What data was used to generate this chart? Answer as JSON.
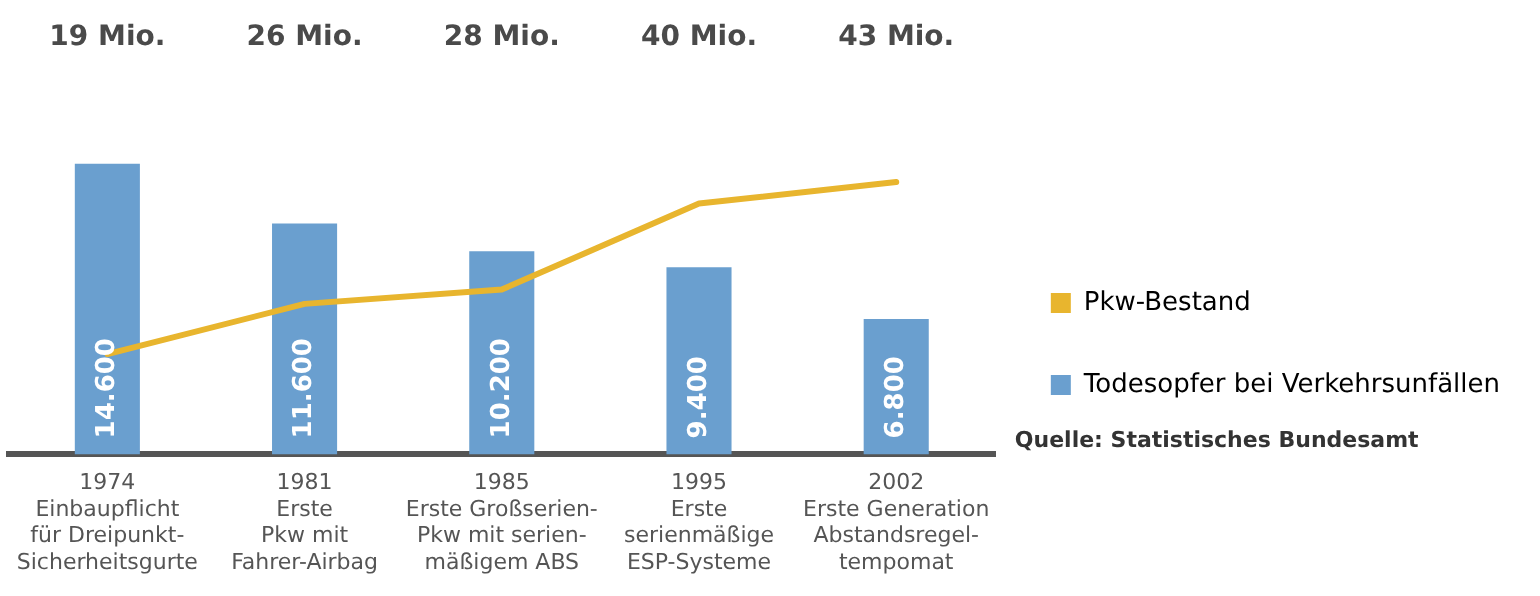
{
  "chart_data": {
    "type": "bar",
    "categories": [
      "1974\nEinbaupflicht\nfür Dreipunkt-\nSicherheitsgurte",
      "1981\nErste\nPkw mit\nFahrer-Airbag",
      "1985\nErste Großserien-\nPkw mit serien-\nmäßigem ABS",
      "1995\nErste\nserienmäßige\nESP-Systeme",
      "2002\nErste Generation\nAbstandsregel-\ntempomat"
    ],
    "series": [
      {
        "name": "Pkw-Bestand",
        "type": "line",
        "axis": "y2",
        "color": "#e8b52e",
        "values": [
          19,
          26,
          28,
          40,
          43
        ],
        "value_labels": [
          "19 Mio.",
          "26 Mio.",
          "28 Mio.",
          "40 Mio.",
          "43 Mio."
        ]
      },
      {
        "name": "Todesopfer bei Verkehrsunfällen",
        "color": "#6a9fcf",
        "values": [
          14600,
          11600,
          10200,
          9400,
          6800
        ],
        "value_labels": [
          "14.600",
          "11.600",
          "10.200",
          "9.400",
          "6.800"
        ]
      }
    ],
    "tick_labels": "x",
    "grid": false,
    "legend": "right",
    "marker": "none",
    "annotations": [
      "Quelle: Statistisches Bundesamt"
    ]
  }
}
